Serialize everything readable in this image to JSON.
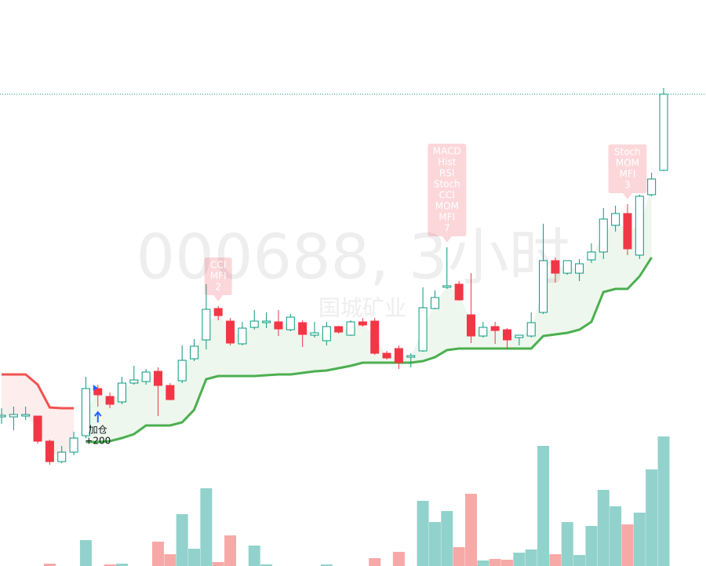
{
  "chart_data": {
    "type": "candlestick",
    "watermark": "000688, 3小时",
    "watermark_subtitle": "国城矿业",
    "up_color": "#089981",
    "down_color": "#f23645",
    "volume_up_color": "#92d2cc",
    "volume_down_color": "#f7a9a7",
    "open": [
      16.9,
      16.9,
      17.0,
      17.0,
      13.8,
      11.2,
      12.4,
      14.5,
      20.5,
      19.5,
      18.8,
      21.2,
      21.4,
      22.7,
      20.9,
      21.5,
      24.3,
      26.7,
      30.7,
      29.1,
      26.2,
      28.3,
      28.9,
      29.0,
      28.0,
      28.9,
      27.3,
      26.6,
      28.4,
      27.3,
      29.0,
      29.1,
      25.0,
      25.6,
      24.5,
      25.3,
      30.7,
      33.4,
      33.8,
      29.9,
      27.2,
      28.4,
      28.0,
      27.0,
      27.2,
      30.2,
      36.8,
      35.2,
      35.2,
      36.9,
      37.9,
      41.3,
      42.8,
      37.5,
      45.2,
      48.3
    ],
    "high": [
      18.0,
      18.2,
      18.2,
      17.0,
      14.0,
      13.2,
      15.0,
      22.0,
      21.0,
      20.0,
      22.0,
      23.4,
      23.0,
      23.2,
      21.2,
      26.0,
      26.8,
      33.8,
      31.0,
      29.5,
      29.0,
      30.5,
      30.2,
      30.5,
      30.0,
      29.2,
      29.0,
      29.0,
      28.5,
      29.2,
      29.5,
      29.5,
      25.3,
      26.0,
      25.0,
      33.4,
      33.0,
      38.5,
      34.2,
      35.2,
      29.0,
      29.0,
      28.2,
      27.3,
      30.2,
      41.5,
      37.2,
      36.8,
      37.0,
      39.0,
      43.5,
      43.8,
      44.0,
      45.2,
      48.0,
      58.8
    ],
    "low": [
      16.0,
      15.2,
      16.5,
      13.5,
      10.8,
      11.0,
      12.0,
      14.2,
      18.2,
      18.0,
      18.5,
      21.0,
      21.0,
      17.0,
      19.0,
      21.2,
      24.0,
      25.5,
      29.2,
      26.0,
      26.0,
      28.0,
      28.2,
      27.2,
      27.8,
      25.8,
      27.0,
      26.0,
      27.5,
      27.2,
      28.4,
      24.8,
      24.2,
      23.0,
      23.2,
      25.2,
      30.6,
      33.2,
      31.7,
      26.3,
      27.0,
      26.2,
      25.5,
      26.0,
      27.0,
      30.0,
      34.0,
      35.0,
      34.2,
      36.5,
      37.0,
      40.5,
      37.5,
      37.0,
      45.0,
      48.2
    ],
    "close": [
      17.1,
      17.2,
      17.2,
      13.8,
      11.2,
      12.4,
      14.2,
      20.5,
      19.7,
      18.5,
      21.2,
      21.6,
      22.6,
      20.9,
      19.1,
      24.1,
      25.9,
      30.6,
      29.8,
      26.3,
      28.2,
      29.1,
      29.1,
      28.1,
      29.6,
      27.4,
      27.6,
      28.4,
      27.7,
      29.0,
      28.6,
      25.0,
      24.4,
      23.8,
      24.7,
      30.8,
      32.1,
      33.6,
      31.8,
      27.2,
      28.3,
      27.9,
      26.7,
      27.3,
      28.9,
      36.8,
      35.2,
      36.8,
      36.4,
      37.9,
      42.1,
      42.8,
      38.3,
      45.0,
      47.2,
      58.0
    ],
    "volume": [
      null,
      null,
      null,
      null,
      3,
      null,
      null,
      33,
      null,
      2,
      3,
      null,
      null,
      31,
      15,
      66,
      22,
      99,
      5,
      39,
      null,
      26,
      2,
      null,
      null,
      null,
      null,
      2,
      null,
      null,
      null,
      10,
      null,
      18,
      null,
      83,
      56,
      70,
      24,
      92,
      7,
      9,
      8,
      17,
      21,
      153,
      15,
      56,
      14,
      51,
      97,
      76,
      53,
      68,
      123,
      165
    ],
    "supertrend": [
      {
        "color": "#f05350",
        "values": [
          22.3,
          22.3,
          22.3,
          21.0,
          18.1,
          18.0,
          18.0,
          null,
          null,
          null,
          null,
          null,
          null,
          null,
          null,
          null,
          null,
          null,
          null,
          null,
          null,
          null,
          null,
          null,
          null,
          null,
          null,
          null,
          null,
          null,
          null,
          null,
          null,
          null,
          null,
          null,
          null,
          null,
          null,
          null,
          null,
          null,
          null,
          null,
          null,
          null,
          null,
          null,
          null,
          null,
          null,
          null,
          null,
          null,
          null,
          null
        ]
      },
      {
        "color": "#4caf50",
        "values": [
          null,
          null,
          null,
          null,
          null,
          null,
          null,
          13.7,
          13.7,
          13.8,
          14.2,
          14.7,
          15.8,
          15.8,
          15.8,
          16.2,
          17.8,
          21.7,
          22.1,
          22.1,
          22.1,
          22.1,
          22.2,
          22.3,
          22.3,
          22.5,
          22.7,
          22.8,
          23.1,
          23.4,
          23.8,
          23.8,
          23.8,
          23.8,
          23.8,
          24.0,
          24.5,
          25.4,
          25.6,
          25.6,
          25.6,
          25.6,
          25.6,
          25.6,
          25.6,
          27.2,
          27.4,
          27.6,
          28.0,
          29.0,
          32.8,
          33.2,
          33.2,
          34.8,
          37.2,
          null
        ]
      }
    ],
    "signals": [
      {
        "index": 8,
        "lines": [
          "加仓",
          "+200"
        ]
      }
    ],
    "annotations": [
      {
        "index": 18,
        "lines": [
          "CCI",
          "MFI",
          "2"
        ]
      },
      {
        "index": 37,
        "lines": [
          "MACD",
          "Hist",
          "RSI",
          "Stoch",
          "CCI",
          "MOM",
          "MFI",
          "7"
        ]
      },
      {
        "index": 52,
        "lines": [
          "Stoch",
          "MOM",
          "MFI",
          "3"
        ]
      }
    ]
  }
}
